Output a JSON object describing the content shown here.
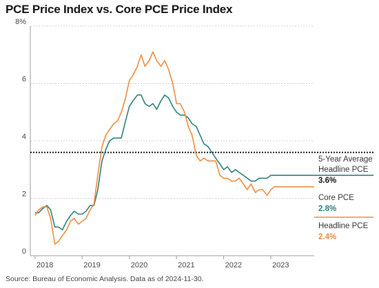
{
  "title": "PCE Price Index vs. Core PCE Price Index",
  "source": "Source: Bureau of Economic Analysis. Data as of 2024-11-30.",
  "colors": {
    "core": "#2a7f7a",
    "headline": "#f08a3a",
    "average": "#111111",
    "grid": "#cfcfcf"
  },
  "chart_data": {
    "type": "line",
    "title": "PCE Price Index vs. Core PCE Price Index",
    "ylim": [
      0,
      8
    ],
    "xlim": [
      2017.9,
      2023.92
    ],
    "y_ticks": [
      0,
      2,
      4,
      6,
      8
    ],
    "y_tick_labels": [
      "0",
      "2",
      "4",
      "6",
      "8%"
    ],
    "x_ticks": [
      2018,
      2019,
      2020,
      2021,
      2022,
      2023
    ],
    "x_tick_labels": [
      "2018",
      "2019",
      "2020",
      "2021",
      "2022",
      "2023"
    ],
    "grid": "horizontal",
    "legend_placement": "right",
    "reference_line": {
      "name": "5-Year Average Headline PCE",
      "value": 3.6,
      "label": "3.6%",
      "style": "dotted"
    },
    "series": [
      {
        "name": "Core PCE",
        "label": "2.8%",
        "x": [
          2018.0,
          2018.08,
          2018.17,
          2018.25,
          2018.33,
          2018.42,
          2018.5,
          2018.58,
          2018.67,
          2018.75,
          2018.83,
          2018.92,
          2019.0,
          2019.08,
          2019.17,
          2019.25,
          2019.33,
          2019.42,
          2019.5,
          2019.58,
          2019.67,
          2019.75,
          2019.83,
          2019.92,
          2020.0,
          2020.08,
          2020.17,
          2020.25,
          2020.33,
          2020.42,
          2020.5,
          2020.58,
          2020.67,
          2020.75,
          2020.83,
          2020.92,
          2021.0,
          2021.08,
          2021.17,
          2021.25,
          2021.33,
          2021.42,
          2021.5,
          2021.58,
          2021.67,
          2021.75,
          2021.83,
          2021.92,
          2022.0,
          2022.08,
          2022.17,
          2022.25,
          2022.33,
          2022.42,
          2022.5,
          2022.58,
          2022.67,
          2022.75,
          2022.83,
          2022.92,
          2023.0,
          2023.08,
          2023.17,
          2023.25,
          2023.33,
          2023.42,
          2023.5,
          2023.58,
          2023.67,
          2023.75,
          2023.83,
          2023.92
        ],
        "values": [
          1.5,
          1.5,
          1.65,
          1.75,
          1.6,
          1.0,
          1.0,
          0.9,
          1.2,
          1.4,
          1.55,
          1.45,
          1.45,
          1.55,
          1.75,
          1.75,
          2.3,
          3.3,
          3.7,
          4.0,
          4.1,
          4.1,
          4.1,
          4.7,
          5.2,
          5.4,
          5.6,
          5.6,
          5.3,
          5.2,
          5.3,
          5.1,
          5.4,
          5.6,
          5.5,
          5.2,
          5.0,
          4.9,
          4.9,
          4.8,
          4.6,
          4.5,
          4.2,
          3.9,
          3.8,
          3.6,
          3.4,
          3.2,
          3.0,
          3.1,
          2.9,
          3.0,
          2.9,
          2.8,
          2.7,
          2.6,
          2.6,
          2.7,
          2.7,
          2.7,
          2.8,
          2.8,
          2.8,
          2.8,
          2.8,
          2.8,
          2.8,
          2.8,
          2.8,
          2.8,
          2.8,
          2.8
        ]
      },
      {
        "name": "Headline PCE",
        "label": "2.4%",
        "x": [
          2018.0,
          2018.08,
          2018.17,
          2018.25,
          2018.33,
          2018.42,
          2018.5,
          2018.58,
          2018.67,
          2018.75,
          2018.83,
          2018.92,
          2019.0,
          2019.08,
          2019.17,
          2019.25,
          2019.33,
          2019.42,
          2019.5,
          2019.58,
          2019.67,
          2019.75,
          2019.83,
          2019.92,
          2020.0,
          2020.08,
          2020.17,
          2020.25,
          2020.33,
          2020.42,
          2020.5,
          2020.58,
          2020.67,
          2020.75,
          2020.83,
          2020.92,
          2021.0,
          2021.08,
          2021.17,
          2021.25,
          2021.33,
          2021.42,
          2021.5,
          2021.58,
          2021.67,
          2021.75,
          2021.83,
          2021.92,
          2022.0,
          2022.08,
          2022.17,
          2022.25,
          2022.33,
          2022.42,
          2022.5,
          2022.58,
          2022.67,
          2022.75,
          2022.83,
          2022.92,
          2023.0,
          2023.08,
          2023.17,
          2023.25,
          2023.33,
          2023.42,
          2023.5,
          2023.58,
          2023.67,
          2023.75,
          2023.83,
          2023.92
        ],
        "values": [
          1.4,
          1.6,
          1.7,
          1.7,
          1.3,
          0.4,
          0.5,
          0.7,
          0.9,
          1.2,
          1.3,
          1.1,
          1.2,
          1.3,
          1.6,
          1.8,
          2.8,
          3.8,
          4.2,
          4.4,
          4.6,
          4.7,
          5.0,
          5.5,
          6.1,
          6.3,
          6.6,
          7.0,
          6.6,
          6.8,
          7.1,
          6.8,
          6.6,
          6.8,
          6.5,
          6.0,
          5.3,
          5.3,
          5.0,
          4.5,
          4.2,
          3.5,
          3.3,
          3.4,
          3.3,
          3.3,
          3.3,
          2.8,
          2.7,
          2.7,
          2.6,
          2.6,
          2.7,
          2.5,
          2.3,
          2.5,
          2.2,
          2.3,
          2.3,
          2.1,
          2.3,
          2.4,
          2.4,
          2.4,
          2.4,
          2.4,
          2.4,
          2.4,
          2.4,
          2.4,
          2.4,
          2.4
        ]
      }
    ]
  }
}
